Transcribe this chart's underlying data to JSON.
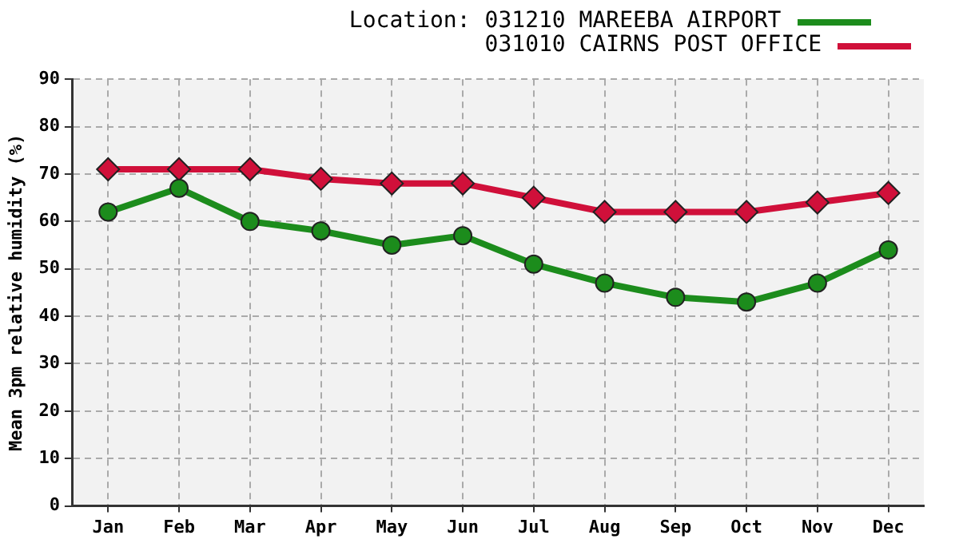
{
  "chart_data": {
    "type": "line",
    "ylabel": "Mean 3pm relative humidity (%)",
    "legend_title": "Location:",
    "legend": "top right",
    "grid": true,
    "categories": [
      "Jan",
      "Feb",
      "Mar",
      "Apr",
      "May",
      "Jun",
      "Jul",
      "Aug",
      "Sep",
      "Oct",
      "Nov",
      "Dec"
    ],
    "ylim": [
      0,
      90
    ],
    "yticks": [
      0,
      10,
      20,
      30,
      40,
      50,
      60,
      70,
      80,
      90
    ],
    "series": [
      {
        "name": "031210 MAREEBA AIRPORT",
        "color": "#1c8c1c",
        "marker": "circle",
        "values": [
          62,
          67,
          60,
          58,
          55,
          57,
          51,
          47,
          44,
          43,
          47,
          54
        ]
      },
      {
        "name": "031010 CAIRNS POST OFFICE",
        "color": "#d0103a",
        "marker": "diamond",
        "values": [
          71,
          71,
          71,
          69,
          68,
          68,
          65,
          62,
          62,
          62,
          64,
          66
        ]
      }
    ]
  }
}
